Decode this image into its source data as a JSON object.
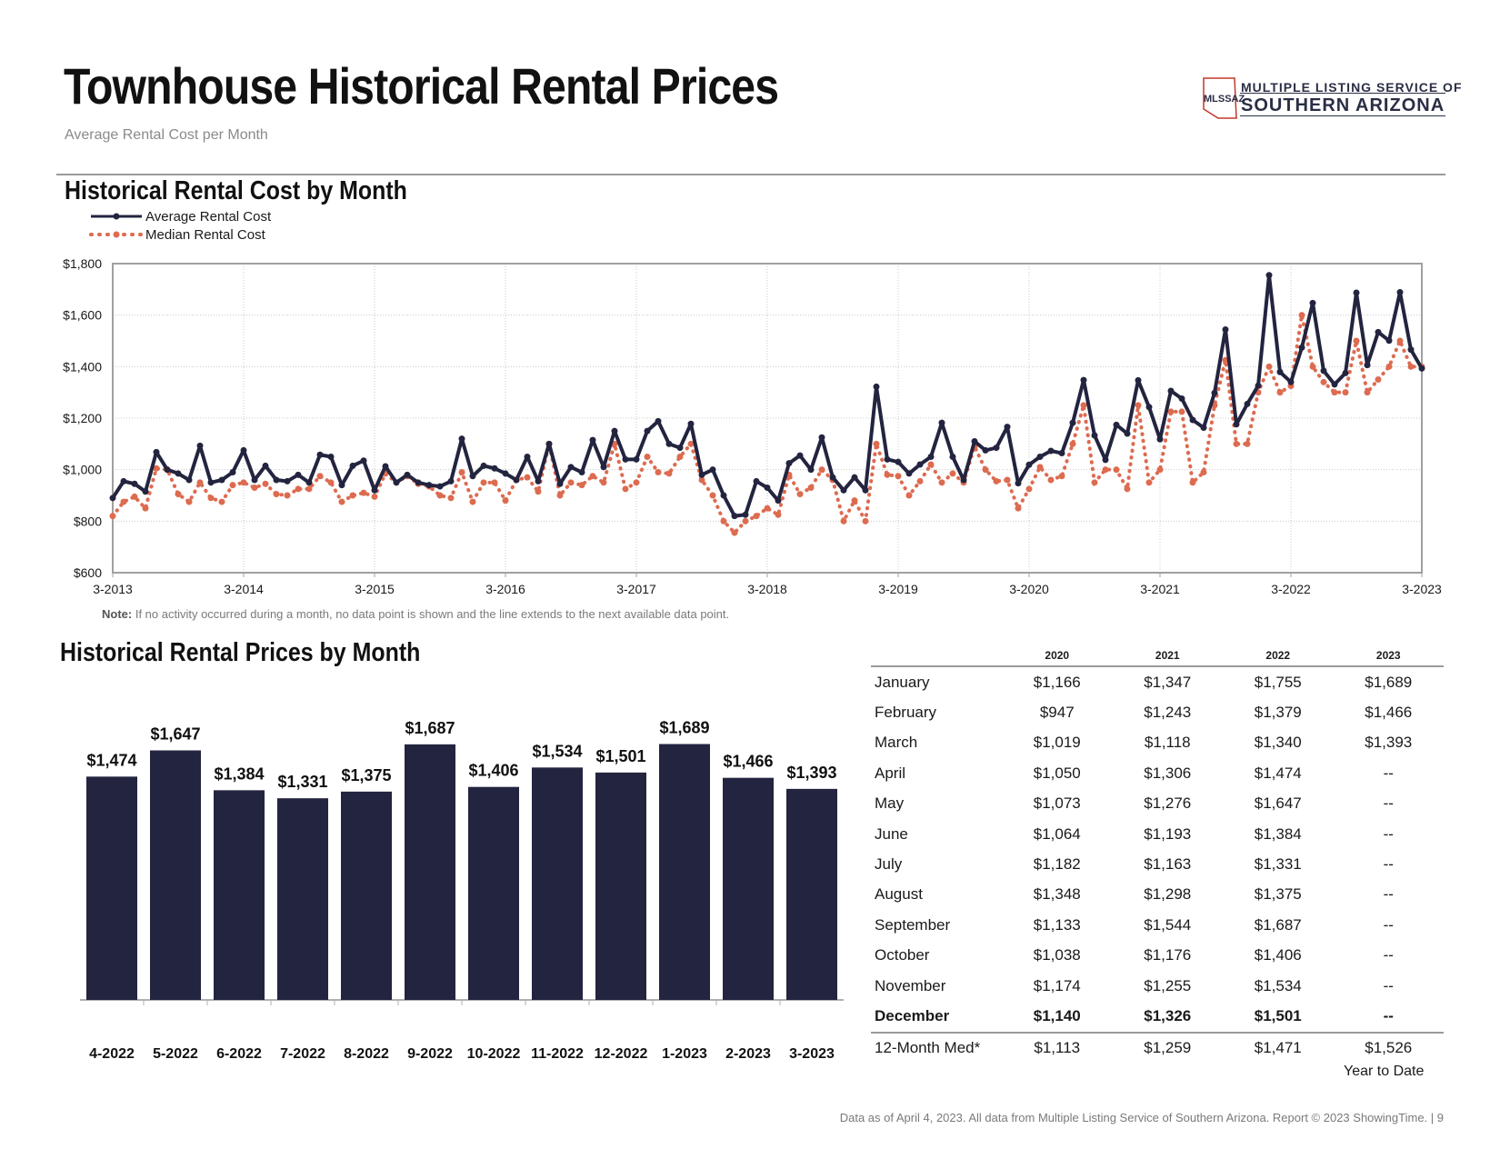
{
  "header": {
    "title": "Townhouse Historical Rental Prices",
    "subtitle": "Average Rental Cost per Month",
    "logo_line1": "MULTIPLE LISTING SERVICE OF",
    "logo_line2": "SOUTHERN ARIZONA",
    "logo_badge": "MLSSAZ"
  },
  "section1_title": "Historical Rental Cost by Month",
  "section2_title": "Historical Rental Prices by Month",
  "legend": {
    "average": "Average Rental Cost",
    "median": "Median Rental Cost"
  },
  "note": {
    "label": "Note:",
    "text": " If no activity occurred during a month, no data point is shown and the line extends to the next available data point."
  },
  "footer": "Data as of April 4, 2023. All data from Multiple Listing Service of Southern Arizona. Report © 2023 ShowingTime. |  9",
  "colors": {
    "average": "#23243f",
    "median": "#dd6b50",
    "bar": "#23243f",
    "grid": "#c8c8c8",
    "axis": "#a0a0a0"
  },
  "chart_data": [
    {
      "type": "line",
      "ylim": [
        600,
        1800
      ],
      "yticks": [
        "$600",
        "$800",
        "$1,000",
        "$1,200",
        "$1,400",
        "$1,600",
        "$1,800"
      ],
      "ytick_values": [
        600,
        800,
        1000,
        1200,
        1400,
        1600,
        1800
      ],
      "xticks": [
        "3-2013",
        "3-2014",
        "3-2015",
        "3-2016",
        "3-2017",
        "3-2018",
        "3-2019",
        "3-2020",
        "3-2021",
        "3-2022",
        "3-2023"
      ],
      "x_start": "3-2013",
      "x_end": "3-2023",
      "grid": true,
      "legend_position": "top-left",
      "series": [
        {
          "name": "Average Rental Cost",
          "style": "solid",
          "values": [
            890,
            955,
            945,
            915,
            1068,
            1000,
            985,
            960,
            1093,
            950,
            960,
            990,
            1075,
            960,
            1015,
            960,
            955,
            980,
            950,
            1058,
            1050,
            940,
            1015,
            1035,
            920,
            1013,
            950,
            980,
            950,
            940,
            935,
            955,
            1120,
            975,
            1015,
            1005,
            985,
            960,
            1050,
            955,
            1100,
            945,
            1010,
            990,
            1115,
            1010,
            1150,
            1040,
            1040,
            1150,
            1188,
            1100,
            1085,
            1178,
            980,
            1000,
            900,
            820,
            825,
            955,
            930,
            880,
            1025,
            1055,
            1000,
            1125,
            970,
            920,
            970,
            920,
            1322,
            1040,
            1030,
            985,
            1020,
            1050,
            1182,
            1050,
            960,
            1110,
            1075,
            1085,
            1166,
            947,
            1019,
            1050,
            1073,
            1064,
            1182,
            1348,
            1133,
            1038,
            1174,
            1140,
            1347,
            1243,
            1118,
            1306,
            1276,
            1193,
            1163,
            1298,
            1544,
            1176,
            1255,
            1326,
            1755,
            1379,
            1340,
            1474,
            1647,
            1384,
            1331,
            1375,
            1687,
            1406,
            1534,
            1501,
            1689,
            1466,
            1393
          ]
        },
        {
          "name": "Median Rental Cost",
          "style": "dotted",
          "values": [
            820,
            875,
            895,
            850,
            1005,
            1000,
            905,
            875,
            950,
            890,
            875,
            940,
            950,
            930,
            945,
            905,
            900,
            925,
            925,
            975,
            950,
            875,
            900,
            910,
            895,
            985,
            950,
            975,
            945,
            935,
            900,
            890,
            990,
            875,
            950,
            950,
            880,
            960,
            970,
            915,
            1100,
            900,
            950,
            940,
            975,
            950,
            1100,
            925,
            950,
            1050,
            990,
            985,
            1050,
            1100,
            960,
            900,
            800,
            755,
            800,
            820,
            850,
            825,
            980,
            905,
            930,
            1000,
            960,
            800,
            880,
            800,
            1100,
            980,
            975,
            900,
            955,
            1020,
            950,
            985,
            950,
            1090,
            1000,
            955,
            960,
            850,
            925,
            1010,
            960,
            975,
            1100,
            1250,
            950,
            1000,
            1000,
            925,
            1250,
            950,
            1000,
            1225,
            1225,
            950,
            990,
            1250,
            1425,
            1100,
            1100,
            1300,
            1400,
            1300,
            1325,
            1600,
            1400,
            1340,
            1300,
            1300,
            1500,
            1300,
            1350,
            1400,
            1500,
            1400,
            1400
          ]
        }
      ]
    },
    {
      "type": "bar",
      "categories": [
        "4-2022",
        "5-2022",
        "6-2022",
        "7-2022",
        "8-2022",
        "9-2022",
        "10-2022",
        "11-2022",
        "12-2022",
        "1-2023",
        "2-2023",
        "3-2023"
      ],
      "values": [
        1474,
        1647,
        1384,
        1331,
        1375,
        1687,
        1406,
        1534,
        1501,
        1689,
        1466,
        1393
      ],
      "labels": [
        "$1,474",
        "$1,647",
        "$1,384",
        "$1,331",
        "$1,375",
        "$1,687",
        "$1,406",
        "$1,534",
        "$1,501",
        "$1,689",
        "$1,466",
        "$1,393"
      ],
      "ylim": [
        0,
        1800
      ]
    },
    {
      "type": "table",
      "columns": [
        "2020",
        "2021",
        "2022",
        "2023"
      ],
      "rows": [
        {
          "month": "January",
          "values": [
            "$1,166",
            "$1,347",
            "$1,755",
            "$1,689"
          ]
        },
        {
          "month": "February",
          "values": [
            "$947",
            "$1,243",
            "$1,379",
            "$1,466"
          ]
        },
        {
          "month": "March",
          "values": [
            "$1,019",
            "$1,118",
            "$1,340",
            "$1,393"
          ]
        },
        {
          "month": "April",
          "values": [
            "$1,050",
            "$1,306",
            "$1,474",
            "--"
          ]
        },
        {
          "month": "May",
          "values": [
            "$1,073",
            "$1,276",
            "$1,647",
            "--"
          ]
        },
        {
          "month": "June",
          "values": [
            "$1,064",
            "$1,193",
            "$1,384",
            "--"
          ]
        },
        {
          "month": "July",
          "values": [
            "$1,182",
            "$1,163",
            "$1,331",
            "--"
          ]
        },
        {
          "month": "August",
          "values": [
            "$1,348",
            "$1,298",
            "$1,375",
            "--"
          ]
        },
        {
          "month": "September",
          "values": [
            "$1,133",
            "$1,544",
            "$1,687",
            "--"
          ]
        },
        {
          "month": "October",
          "values": [
            "$1,038",
            "$1,176",
            "$1,406",
            "--"
          ]
        },
        {
          "month": "November",
          "values": [
            "$1,174",
            "$1,255",
            "$1,534",
            "--"
          ]
        },
        {
          "month": "December",
          "values": [
            "$1,140",
            "$1,326",
            "$1,501",
            "--"
          ]
        }
      ],
      "summary": {
        "month": "12-Month Med*",
        "values": [
          "$1,113",
          "$1,259",
          "$1,471",
          "$1,526"
        ]
      },
      "ytd_label": "Year to Date"
    }
  ]
}
